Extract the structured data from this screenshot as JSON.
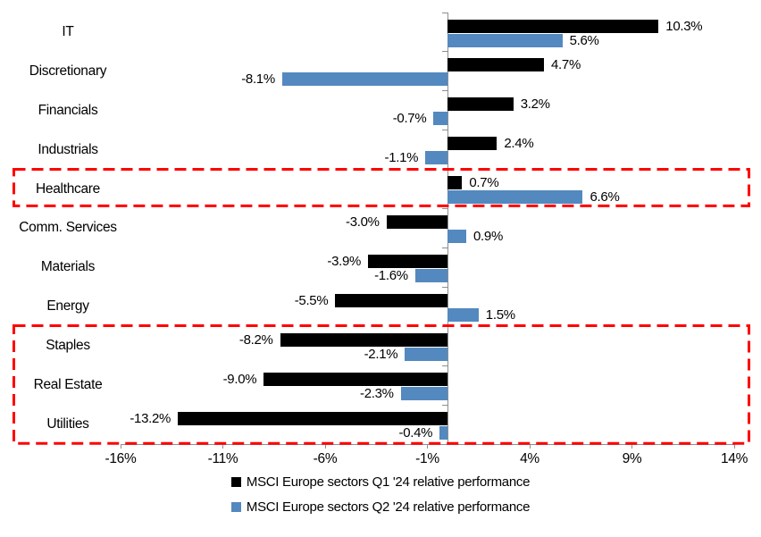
{
  "chart_data": {
    "type": "bar",
    "orientation": "horizontal",
    "title": "",
    "xlabel": "",
    "ylabel": "",
    "categories": [
      "IT",
      "Discretionary",
      "Financials",
      "Industrials",
      "Healthcare",
      "Comm. Services",
      "Materials",
      "Energy",
      "Staples",
      "Real Estate",
      "Utilities"
    ],
    "series": [
      {
        "name": "MSCI Europe sectors Q1 '24 relative performance",
        "color": "#000000",
        "values": [
          10.3,
          4.7,
          3.2,
          2.4,
          0.7,
          -3.0,
          -3.9,
          -5.5,
          -8.2,
          -9.0,
          -13.2
        ],
        "labels": [
          "10.3%",
          "4.7%",
          "3.2%",
          "2.4%",
          "0.7%",
          "-3.0%",
          "-3.9%",
          "-5.5%",
          "-8.2%",
          "-9.0%",
          "-13.2%"
        ]
      },
      {
        "name": "MSCI Europe sectors Q2 '24 relative performance",
        "color": "#5389BF",
        "values": [
          5.6,
          -8.1,
          -0.7,
          -1.1,
          6.6,
          0.9,
          -1.6,
          1.5,
          -2.1,
          -2.3,
          -0.4
        ],
        "labels": [
          "5.6%",
          "-8.1%",
          "-0.7%",
          "-1.1%",
          "6.6%",
          "0.9%",
          "-1.6%",
          "1.5%",
          "-2.1%",
          "-2.3%",
          "-0.4%"
        ]
      }
    ],
    "xlim": [
      -16,
      14
    ],
    "x_ticks": [
      {
        "value": -16,
        "label": "-16%"
      },
      {
        "value": -11,
        "label": "-11%"
      },
      {
        "value": -6,
        "label": "-6%"
      },
      {
        "value": -1,
        "label": "-1%"
      },
      {
        "value": 4,
        "label": "4%"
      },
      {
        "value": 9,
        "label": "9%"
      },
      {
        "value": 14,
        "label": "14%"
      }
    ],
    "grid": false,
    "legend_position": "bottom",
    "axis_color": "#8e8e8e",
    "data_label_color": "#000000",
    "highlights": [
      {
        "name": "healthcare-highlight",
        "categories": [
          "Healthcare"
        ],
        "start_index": 4,
        "end_index": 4,
        "color": "#FF0000",
        "style": "dashed"
      },
      {
        "name": "staples-realestate-utilities-highlight",
        "categories": [
          "Staples",
          "Real Estate",
          "Utilities"
        ],
        "start_index": 8,
        "end_index": 10,
        "color": "#FF0000",
        "style": "dashed"
      }
    ]
  }
}
